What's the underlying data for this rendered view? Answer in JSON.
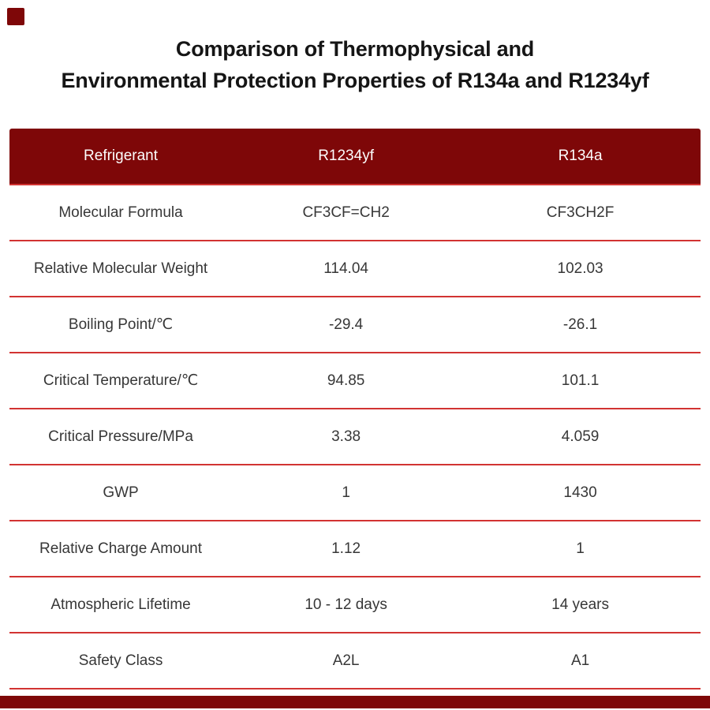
{
  "title": {
    "line1": "Comparison of Thermophysical and",
    "line2": "Environmental Protection Properties of R134a and R1234yf"
  },
  "chart_data": {
    "type": "table",
    "title": "Comparison of Thermophysical and Environmental Protection Properties of R134a and R1234yf",
    "columns": [
      "Refrigerant",
      "R1234yf",
      "R134a"
    ],
    "rows": [
      [
        "Molecular Formula",
        "CF3CF=CH2",
        "CF3CH2F"
      ],
      [
        "Relative Molecular Weight",
        "114.04",
        "102.03"
      ],
      [
        "Boiling Point/℃",
        "-29.4",
        "-26.1"
      ],
      [
        "Critical Temperature/℃",
        "94.85",
        "101.1"
      ],
      [
        "Critical Pressure/MPa",
        "3.38",
        "4.059"
      ],
      [
        "GWP",
        "1",
        "1430"
      ],
      [
        "Relative Charge Amount",
        "1.12",
        "1"
      ],
      [
        "Atmospheric Lifetime",
        "10 - 12 days",
        "14 years"
      ],
      [
        "Safety Class",
        "A2L",
        "A1"
      ]
    ],
    "layout": {
      "grid": "horizontal red separator lines only, no vertical borders",
      "header_style": "dark maroon background, white text"
    }
  },
  "colors": {
    "header_background": "#7E0708",
    "separator_line": "#D23332",
    "header_text": "#FDFDFD",
    "body_text": "#373737",
    "accent_marks": "#7E0708"
  }
}
